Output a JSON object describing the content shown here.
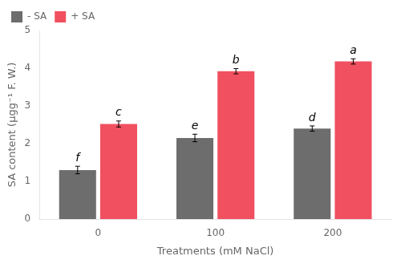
{
  "chart_data": {
    "type": "bar",
    "categories": [
      "0",
      "100",
      "200"
    ],
    "series": [
      {
        "name": "- SA",
        "color": "#6d6d6d",
        "values": [
          1.3,
          2.15,
          2.4
        ],
        "errors": [
          0.1,
          0.1,
          0.07
        ],
        "letters": [
          "f",
          "e",
          "d"
        ]
      },
      {
        "name": "+ SA",
        "color": "#f05060",
        "values": [
          2.52,
          3.92,
          4.18
        ],
        "errors": [
          0.08,
          0.07,
          0.07
        ],
        "letters": [
          "c",
          "b",
          "a"
        ]
      }
    ],
    "xlabel": "Treatments (mM NaCl)",
    "ylabel": "SA content (μgg⁻¹ F. W.)",
    "ylim": [
      0,
      5
    ],
    "yticks": [
      0,
      1,
      2,
      3,
      4,
      5
    ],
    "grid": false,
    "legend": "upper left"
  }
}
